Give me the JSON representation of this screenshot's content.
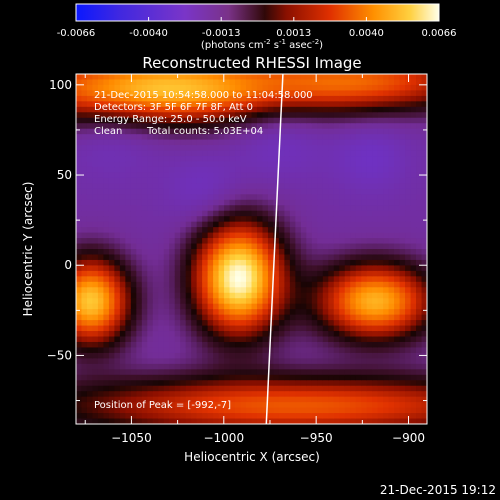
{
  "colorbar": {
    "ticks": [
      "-0.0066",
      "-0.0040",
      "-0.0013",
      "0.0013",
      "0.0040",
      "0.0066"
    ],
    "units_prefix": "(photons cm",
    "units_exp1": "-2",
    "units_mid1": " s",
    "units_exp2": "-1",
    "units_mid2": " asec",
    "units_exp3": "-2",
    "units_suffix": ")"
  },
  "header": {
    "time_range": "21-Dec-2015 10:54:58.000 to 11:04:58.000",
    "detectors": "Detectors: 3F 5F 6F 7F 8F, Att 0",
    "energy": "Energy Range: 25.0 - 50.0 keV",
    "clean": "Clean",
    "counts": "Total counts: 5.03E+04"
  },
  "peak_text": "Position of Peak = [-992,-7]",
  "footer_date": "21-Dec-2015 19:12",
  "colors": {
    "background": "#000000",
    "text": "#ffffff",
    "limb_line": "#ffffff"
  },
  "chart_data": {
    "type": "heatmap",
    "title": "Reconstructed RHESSI Image",
    "xlabel": "Heliocentric X (arcsec)",
    "ylabel": "Heliocentric Y (arcsec)",
    "xlim": [
      -1080,
      -890
    ],
    "ylim": [
      -88,
      106
    ],
    "xticks": [
      -1050,
      -1000,
      -950,
      -900
    ],
    "yticks": [
      -50,
      0,
      50,
      100
    ],
    "xtick_labels": [
      "−1050",
      "−1000",
      "−950",
      "−900"
    ],
    "ytick_labels": [
      "−50",
      "0",
      "50",
      "100"
    ],
    "zlim": [
      -0.0066,
      0.0066
    ],
    "peak": [
      -992,
      -7
    ],
    "sources": [
      {
        "x": -992,
        "y": -7,
        "amp": 1.0,
        "sx": 17,
        "sy": 22
      },
      {
        "x": -1072,
        "y": -20,
        "amp": 0.85,
        "sx": 15,
        "sy": 17
      },
      {
        "x": -918,
        "y": -20,
        "amp": 0.8,
        "sx": 22,
        "sy": 15
      },
      {
        "x": -1040,
        "y": 98,
        "amp": 0.85,
        "sx": 55,
        "sy": 14
      },
      {
        "x": -920,
        "y": 102,
        "amp": 0.55,
        "sx": 45,
        "sy": 12
      },
      {
        "x": -960,
        "y": -78,
        "amp": 0.6,
        "sx": 95,
        "sy": 12
      }
    ],
    "limb_line": [
      [
        -977,
        -88
      ],
      [
        -968,
        106
      ]
    ]
  }
}
